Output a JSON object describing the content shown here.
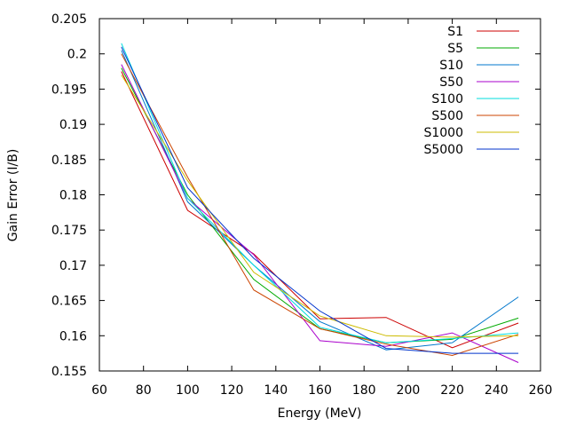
{
  "chart_data": {
    "type": "line",
    "title": "",
    "xlabel": "Energy (MeV)",
    "ylabel": "Gain Error (I/B)",
    "xlim": [
      60,
      260
    ],
    "ylim": [
      0.155,
      0.205
    ],
    "xticks": [
      60,
      80,
      100,
      120,
      140,
      160,
      180,
      200,
      220,
      240,
      260
    ],
    "yticks": [
      0.155,
      0.16,
      0.165,
      0.17,
      0.175,
      0.18,
      0.185,
      0.19,
      0.195,
      0.2,
      0.205
    ],
    "ytick_labels": [
      "0.155",
      "0.16",
      "0.165",
      "0.17",
      "0.175",
      "0.18",
      "0.185",
      "0.19",
      "0.195",
      "0.2",
      "0.205"
    ],
    "grid": false,
    "legend_position": "top-right",
    "x": [
      70,
      100,
      130,
      160,
      190,
      220,
      250
    ],
    "series": [
      {
        "name": "S1",
        "color": "#cc0000",
        "values": [
          0.1975,
          0.1778,
          0.1716,
          0.1624,
          0.1626,
          0.1583,
          0.1618
        ]
      },
      {
        "name": "S5",
        "color": "#00aa00",
        "values": [
          0.198,
          0.18,
          0.168,
          0.161,
          0.159,
          0.1595,
          0.1625
        ]
      },
      {
        "name": "S10",
        "color": "#0077cc",
        "values": [
          0.2005,
          0.179,
          0.17,
          0.162,
          0.158,
          0.159,
          0.1655
        ]
      },
      {
        "name": "S50",
        "color": "#aa00cc",
        "values": [
          0.1985,
          0.1795,
          0.1715,
          0.1593,
          0.1585,
          0.1604,
          0.1562
        ]
      },
      {
        "name": "S100",
        "color": "#00dddd",
        "values": [
          0.2015,
          0.1795,
          0.17,
          0.1612,
          0.159,
          0.1596,
          0.1604
        ]
      },
      {
        "name": "S500",
        "color": "#cc4400",
        "values": [
          0.2,
          0.1825,
          0.1665,
          0.161,
          0.1588,
          0.1572,
          0.1602
        ]
      },
      {
        "name": "S1000",
        "color": "#ccbb00",
        "values": [
          0.197,
          0.182,
          0.169,
          0.1628,
          0.16,
          0.1598,
          0.16
        ]
      },
      {
        "name": "S5000",
        "color": "#0033cc",
        "values": [
          0.201,
          0.181,
          0.171,
          0.1635,
          0.1582,
          0.1575,
          0.1575
        ]
      }
    ]
  }
}
